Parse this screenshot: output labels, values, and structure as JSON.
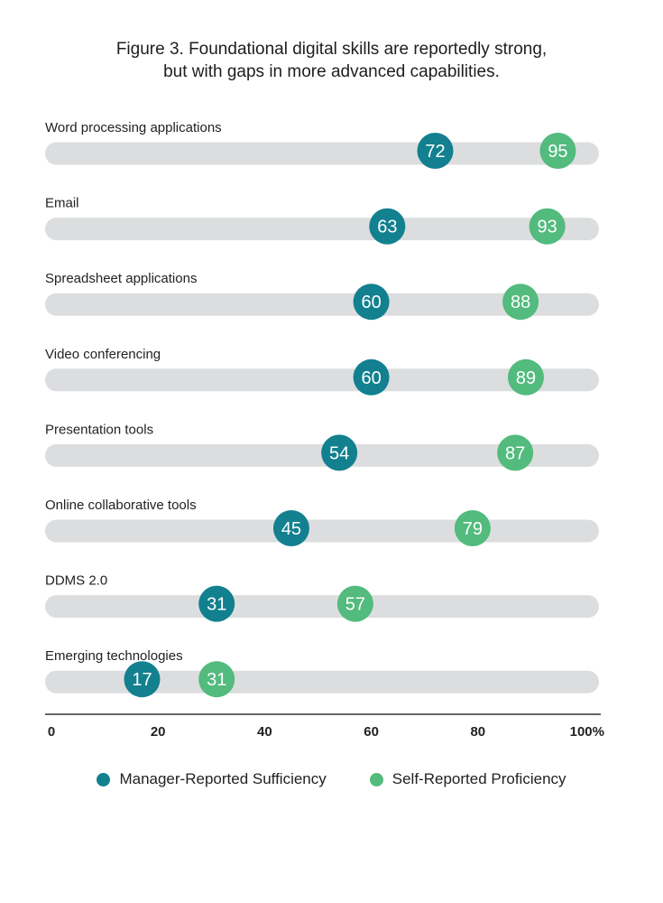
{
  "chart_data": {
    "type": "scatter",
    "subtype": "dumbbell",
    "title": "Figure 3. Foundational digital skills are reportedly strong, but with gaps in more advanced capabilities.",
    "title_lines": [
      "Figure 3. Foundational digital skills are reportedly strong,",
      "but with gaps in more advanced capabilities."
    ],
    "categories": [
      "Word processing applications",
      "Email",
      "Spreadsheet applications",
      "Video conferencing",
      "Presentation tools",
      "Online collaborative tools",
      "DDMS 2.0",
      "Emerging technologies"
    ],
    "series": [
      {
        "name": "Manager-Reported Sufficiency",
        "color": "#12808f",
        "values": [
          72,
          63,
          60,
          60,
          54,
          45,
          31,
          17
        ]
      },
      {
        "name": "Self-Reported Proficiency",
        "color": "#52bb7d",
        "values": [
          95,
          93,
          88,
          89,
          87,
          79,
          57,
          31
        ]
      }
    ],
    "xlim": [
      0,
      100
    ],
    "xticks": [
      0,
      20,
      40,
      60,
      80,
      100
    ],
    "xtick_labels": [
      "0",
      "20",
      "40",
      "60",
      "80",
      "100%"
    ],
    "xlabel": "",
    "ylabel": "",
    "grid": false,
    "legend_position": "bottom",
    "track_color": "#dcdddf"
  }
}
